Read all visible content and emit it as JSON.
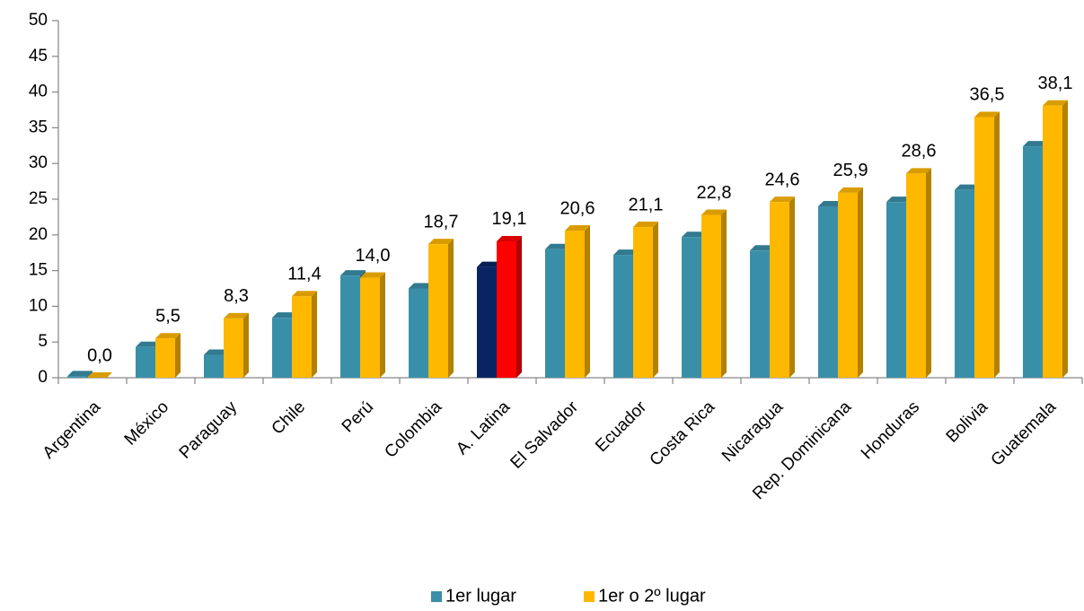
{
  "chart_data": {
    "type": "bar",
    "categories": [
      "Argentina",
      "México",
      "Paraguay",
      "Chile",
      "Perú",
      "Colombia",
      "A. Latina",
      "El Salvador",
      "Ecuador",
      "Costa Rica",
      "Nicaragua",
      "Rep. Dominicana",
      "Honduras",
      "Bolivia",
      "Guatemala"
    ],
    "series": [
      {
        "name": "1er lugar",
        "color": "#3a8fa8",
        "colors": [
          "#3a8fa8",
          "#3a8fa8",
          "#3a8fa8",
          "#3a8fa8",
          "#3a8fa8",
          "#3a8fa8",
          "#0a2463",
          "#3a8fa8",
          "#3a8fa8",
          "#3a8fa8",
          "#3a8fa8",
          "#3a8fa8",
          "#3a8fa8",
          "#3a8fa8",
          "#3a8fa8"
        ],
        "values": [
          0.2,
          4.3,
          3.2,
          8.4,
          14.3,
          12.5,
          15.5,
          18.0,
          17.2,
          19.7,
          17.8,
          24.0,
          24.6,
          26.3,
          32.4
        ]
      },
      {
        "name": "1er o 2º lugar",
        "color": "#ffb800",
        "colors": [
          "#ffb800",
          "#ffb800",
          "#ffb800",
          "#ffb800",
          "#ffb800",
          "#ffb800",
          "#ff0000",
          "#ffb800",
          "#ffb800",
          "#ffb800",
          "#ffb800",
          "#ffb800",
          "#ffb800",
          "#ffb800",
          "#ffb800"
        ],
        "values": [
          0.0,
          5.5,
          8.3,
          11.4,
          14.0,
          18.7,
          19.1,
          20.6,
          21.1,
          22.8,
          24.6,
          25.9,
          28.6,
          36.5,
          38.1
        ],
        "value_labels": [
          "0,0",
          "5,5",
          "8,3",
          "11,4",
          "14,0",
          "18,7",
          "19,1",
          "20,6",
          "21,1",
          "22,8",
          "24,6",
          "25,9",
          "28,6",
          "36,5",
          "38,1"
        ]
      }
    ],
    "ylim": [
      0,
      50
    ],
    "yticks": [
      0,
      5,
      10,
      15,
      20,
      25,
      30,
      35,
      40,
      45,
      50
    ],
    "grid": false,
    "legend": "bottom"
  }
}
